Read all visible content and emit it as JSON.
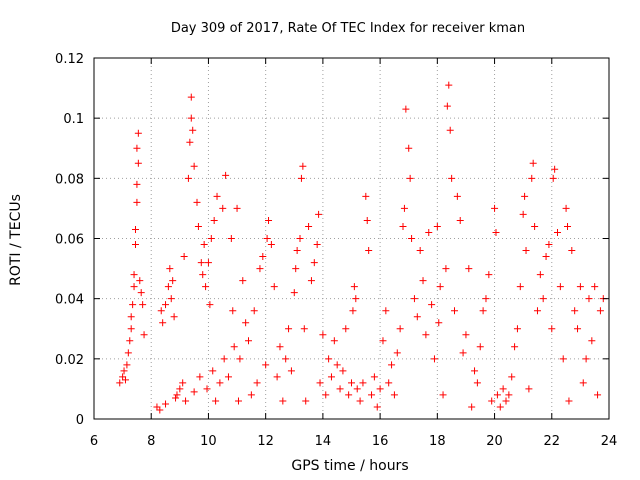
{
  "chart_data": {
    "type": "scatter",
    "title": "Day 309 of 2017, Rate Of TEC Index for receiver kman",
    "xlabel": "GPS time / hours",
    "ylabel": "ROTI / TECUs",
    "xlim": [
      6,
      24
    ],
    "ylim": [
      0,
      0.12
    ],
    "x_ticks": [
      6,
      8,
      10,
      12,
      14,
      16,
      18,
      20,
      22,
      24
    ],
    "x_tick_labels": [
      "6",
      "8",
      "10",
      "12",
      "14",
      "16",
      "18",
      "20",
      "22",
      "24"
    ],
    "y_ticks": [
      0,
      0.02,
      0.04,
      0.06,
      0.08,
      0.1,
      0.12
    ],
    "y_tick_labels": [
      "0",
      "0.02",
      "0.04",
      "0.06",
      "0.08",
      "0.1",
      "0.12"
    ],
    "grid": true,
    "marker": "+",
    "marker_color": "#ff0000",
    "points": [
      [
        6.9,
        0.012
      ],
      [
        7.0,
        0.014
      ],
      [
        7.05,
        0.016
      ],
      [
        7.1,
        0.013
      ],
      [
        7.15,
        0.018
      ],
      [
        7.2,
        0.022
      ],
      [
        7.25,
        0.026
      ],
      [
        7.3,
        0.03
      ],
      [
        7.3,
        0.034
      ],
      [
        7.35,
        0.038
      ],
      [
        7.4,
        0.044
      ],
      [
        7.4,
        0.048
      ],
      [
        7.45,
        0.058
      ],
      [
        7.45,
        0.063
      ],
      [
        7.5,
        0.072
      ],
      [
        7.5,
        0.078
      ],
      [
        7.5,
        0.09
      ],
      [
        7.55,
        0.095
      ],
      [
        7.55,
        0.085
      ],
      [
        7.6,
        0.046
      ],
      [
        7.65,
        0.042
      ],
      [
        7.7,
        0.038
      ],
      [
        7.75,
        0.028
      ],
      [
        8.2,
        0.004
      ],
      [
        8.3,
        0.003
      ],
      [
        8.35,
        0.036
      ],
      [
        8.4,
        0.032
      ],
      [
        8.5,
        0.005
      ],
      [
        8.5,
        0.038
      ],
      [
        8.6,
        0.044
      ],
      [
        8.65,
        0.05
      ],
      [
        8.7,
        0.04
      ],
      [
        8.75,
        0.046
      ],
      [
        8.8,
        0.034
      ],
      [
        8.85,
        0.007
      ],
      [
        8.9,
        0.008
      ],
      [
        9.0,
        0.01
      ],
      [
        9.1,
        0.012
      ],
      [
        9.15,
        0.054
      ],
      [
        9.2,
        0.006
      ],
      [
        9.3,
        0.08
      ],
      [
        9.35,
        0.092
      ],
      [
        9.4,
        0.1
      ],
      [
        9.4,
        0.107
      ],
      [
        9.45,
        0.096
      ],
      [
        9.5,
        0.084
      ],
      [
        9.5,
        0.009
      ],
      [
        9.6,
        0.072
      ],
      [
        9.65,
        0.064
      ],
      [
        9.7,
        0.014
      ],
      [
        9.75,
        0.052
      ],
      [
        9.8,
        0.048
      ],
      [
        9.85,
        0.058
      ],
      [
        9.9,
        0.044
      ],
      [
        9.95,
        0.01
      ],
      [
        10.0,
        0.052
      ],
      [
        10.05,
        0.038
      ],
      [
        10.1,
        0.06
      ],
      [
        10.15,
        0.016
      ],
      [
        10.2,
        0.066
      ],
      [
        10.25,
        0.006
      ],
      [
        10.3,
        0.074
      ],
      [
        10.4,
        0.012
      ],
      [
        10.5,
        0.07
      ],
      [
        10.55,
        0.02
      ],
      [
        10.6,
        0.081
      ],
      [
        10.7,
        0.014
      ],
      [
        10.8,
        0.06
      ],
      [
        10.85,
        0.036
      ],
      [
        10.9,
        0.024
      ],
      [
        11.0,
        0.07
      ],
      [
        11.05,
        0.006
      ],
      [
        11.1,
        0.02
      ],
      [
        11.2,
        0.046
      ],
      [
        11.3,
        0.032
      ],
      [
        11.4,
        0.026
      ],
      [
        11.5,
        0.008
      ],
      [
        11.6,
        0.036
      ],
      [
        11.7,
        0.012
      ],
      [
        11.8,
        0.05
      ],
      [
        11.9,
        0.054
      ],
      [
        12.0,
        0.018
      ],
      [
        12.05,
        0.06
      ],
      [
        12.1,
        0.066
      ],
      [
        12.2,
        0.058
      ],
      [
        12.3,
        0.044
      ],
      [
        12.4,
        0.014
      ],
      [
        12.5,
        0.024
      ],
      [
        12.6,
        0.006
      ],
      [
        12.7,
        0.02
      ],
      [
        12.8,
        0.03
      ],
      [
        12.9,
        0.016
      ],
      [
        13.0,
        0.042
      ],
      [
        13.05,
        0.05
      ],
      [
        13.1,
        0.056
      ],
      [
        13.2,
        0.06
      ],
      [
        13.25,
        0.08
      ],
      [
        13.3,
        0.084
      ],
      [
        13.35,
        0.03
      ],
      [
        13.4,
        0.006
      ],
      [
        13.5,
        0.064
      ],
      [
        13.6,
        0.046
      ],
      [
        13.7,
        0.052
      ],
      [
        13.8,
        0.058
      ],
      [
        13.85,
        0.068
      ],
      [
        13.9,
        0.012
      ],
      [
        14.0,
        0.028
      ],
      [
        14.1,
        0.008
      ],
      [
        14.2,
        0.02
      ],
      [
        14.3,
        0.014
      ],
      [
        14.4,
        0.026
      ],
      [
        14.5,
        0.018
      ],
      [
        14.6,
        0.01
      ],
      [
        14.7,
        0.016
      ],
      [
        14.8,
        0.03
      ],
      [
        14.9,
        0.008
      ],
      [
        15.0,
        0.012
      ],
      [
        15.05,
        0.036
      ],
      [
        15.1,
        0.044
      ],
      [
        15.15,
        0.04
      ],
      [
        15.2,
        0.01
      ],
      [
        15.3,
        0.006
      ],
      [
        15.4,
        0.012
      ],
      [
        15.5,
        0.074
      ],
      [
        15.55,
        0.066
      ],
      [
        15.6,
        0.056
      ],
      [
        15.7,
        0.008
      ],
      [
        15.8,
        0.014
      ],
      [
        15.9,
        0.004
      ],
      [
        16.0,
        0.01
      ],
      [
        16.1,
        0.026
      ],
      [
        16.2,
        0.036
      ],
      [
        16.3,
        0.012
      ],
      [
        16.4,
        0.018
      ],
      [
        16.5,
        0.008
      ],
      [
        16.6,
        0.022
      ],
      [
        16.7,
        0.03
      ],
      [
        16.8,
        0.064
      ],
      [
        16.85,
        0.07
      ],
      [
        16.9,
        0.103
      ],
      [
        17.0,
        0.09
      ],
      [
        17.05,
        0.08
      ],
      [
        17.1,
        0.06
      ],
      [
        17.2,
        0.04
      ],
      [
        17.3,
        0.034
      ],
      [
        17.4,
        0.056
      ],
      [
        17.5,
        0.046
      ],
      [
        17.6,
        0.028
      ],
      [
        17.7,
        0.062
      ],
      [
        17.8,
        0.038
      ],
      [
        17.9,
        0.02
      ],
      [
        18.0,
        0.064
      ],
      [
        18.05,
        0.032
      ],
      [
        18.1,
        0.044
      ],
      [
        18.2,
        0.008
      ],
      [
        18.3,
        0.05
      ],
      [
        18.35,
        0.104
      ],
      [
        18.4,
        0.111
      ],
      [
        18.45,
        0.096
      ],
      [
        18.5,
        0.08
      ],
      [
        18.6,
        0.036
      ],
      [
        18.7,
        0.074
      ],
      [
        18.8,
        0.066
      ],
      [
        18.9,
        0.022
      ],
      [
        19.0,
        0.028
      ],
      [
        19.1,
        0.05
      ],
      [
        19.2,
        0.004
      ],
      [
        19.3,
        0.016
      ],
      [
        19.4,
        0.012
      ],
      [
        19.5,
        0.024
      ],
      [
        19.6,
        0.036
      ],
      [
        19.7,
        0.04
      ],
      [
        19.8,
        0.048
      ],
      [
        19.9,
        0.006
      ],
      [
        20.0,
        0.07
      ],
      [
        20.05,
        0.062
      ],
      [
        20.1,
        0.008
      ],
      [
        20.2,
        0.004
      ],
      [
        20.3,
        0.01
      ],
      [
        20.4,
        0.006
      ],
      [
        20.5,
        0.008
      ],
      [
        20.6,
        0.014
      ],
      [
        20.7,
        0.024
      ],
      [
        20.8,
        0.03
      ],
      [
        20.9,
        0.044
      ],
      [
        21.0,
        0.068
      ],
      [
        21.05,
        0.074
      ],
      [
        21.1,
        0.056
      ],
      [
        21.2,
        0.01
      ],
      [
        21.3,
        0.08
      ],
      [
        21.35,
        0.085
      ],
      [
        21.4,
        0.064
      ],
      [
        21.5,
        0.036
      ],
      [
        21.6,
        0.048
      ],
      [
        21.7,
        0.04
      ],
      [
        21.8,
        0.054
      ],
      [
        21.9,
        0.058
      ],
      [
        22.0,
        0.03
      ],
      [
        22.05,
        0.08
      ],
      [
        22.1,
        0.083
      ],
      [
        22.2,
        0.062
      ],
      [
        22.3,
        0.044
      ],
      [
        22.4,
        0.02
      ],
      [
        22.5,
        0.07
      ],
      [
        22.55,
        0.064
      ],
      [
        22.6,
        0.006
      ],
      [
        22.7,
        0.056
      ],
      [
        22.8,
        0.036
      ],
      [
        22.9,
        0.03
      ],
      [
        23.0,
        0.044
      ],
      [
        23.1,
        0.012
      ],
      [
        23.2,
        0.02
      ],
      [
        23.3,
        0.04
      ],
      [
        23.4,
        0.026
      ],
      [
        23.5,
        0.044
      ],
      [
        23.6,
        0.008
      ],
      [
        23.7,
        0.036
      ],
      [
        23.8,
        0.04
      ]
    ]
  }
}
